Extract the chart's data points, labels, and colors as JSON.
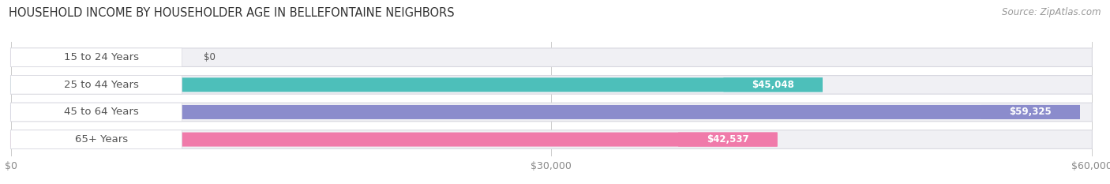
{
  "title": "HOUSEHOLD INCOME BY HOUSEHOLDER AGE IN BELLEFONTAINE NEIGHBORS",
  "source_text": "Source: ZipAtlas.com",
  "categories": [
    "15 to 24 Years",
    "25 to 44 Years",
    "45 to 64 Years",
    "65+ Years"
  ],
  "values": [
    0,
    45048,
    59325,
    42537
  ],
  "bar_colors": [
    "#c4a8d4",
    "#4dbfba",
    "#8b8ccc",
    "#f07aaa"
  ],
  "track_color": "#f0f0f4",
  "track_border_color": "#d8d8e0",
  "value_labels": [
    "$0",
    "$45,048",
    "$59,325",
    "$42,537"
  ],
  "xlim": [
    0,
    60000
  ],
  "xticks": [
    0,
    30000,
    60000
  ],
  "xtick_labels": [
    "$0",
    "$30,000",
    "$60,000"
  ],
  "background_color": "#ffffff",
  "title_fontsize": 10.5,
  "source_fontsize": 8.5,
  "label_fontsize": 9.5,
  "value_fontsize": 8.5,
  "tick_fontsize": 9,
  "label_pill_color": "#ffffff",
  "label_text_color": "#555555",
  "value_text_color_inside": "#ffffff",
  "value_text_color_outside": "#555555"
}
